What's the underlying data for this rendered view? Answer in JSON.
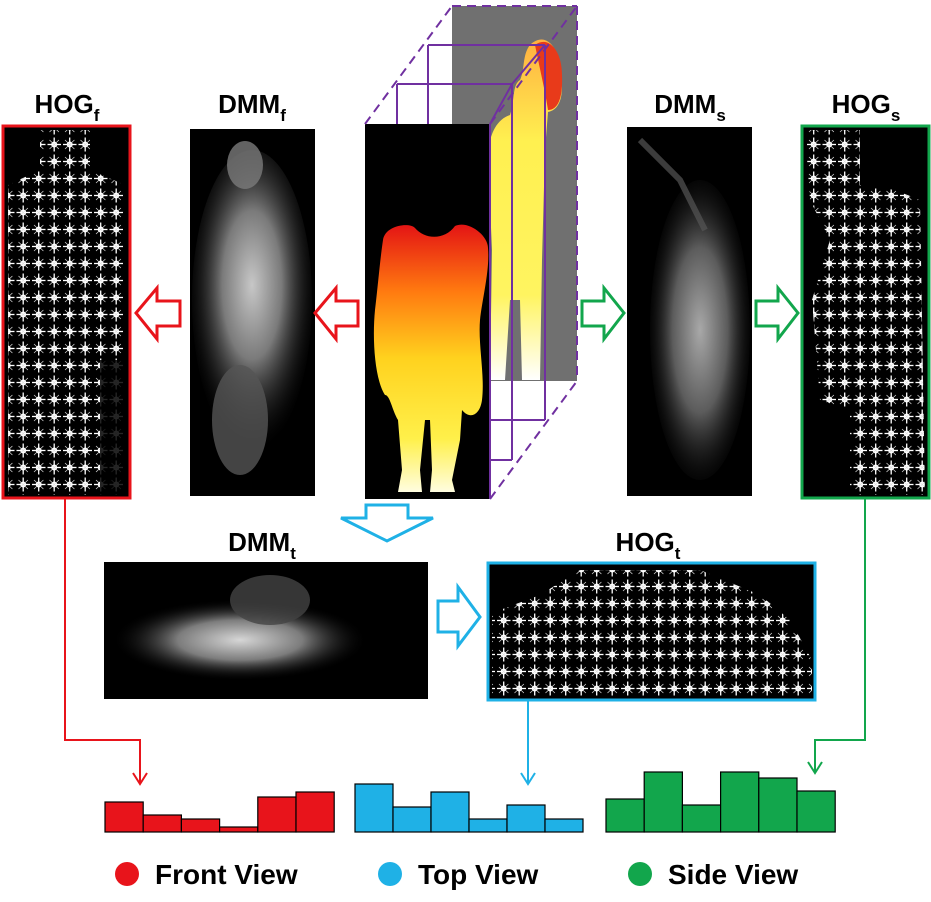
{
  "labels": {
    "hog_front": {
      "base": "HOG",
      "sub": "f"
    },
    "dmm_front": {
      "base": "DMM",
      "sub": "f"
    },
    "dmm_side": {
      "base": "DMM",
      "sub": "s"
    },
    "hog_side": {
      "base": "HOG",
      "sub": "s"
    },
    "dmm_top": {
      "base": "DMM",
      "sub": "t"
    },
    "hog_top": {
      "base": "HOG",
      "sub": "t"
    }
  },
  "colors": {
    "front": "#e8141b",
    "top": "#1fb1e6",
    "side": "#12a64c",
    "projection": "#7030a0",
    "panel_bg": "#000000",
    "gray_panel": "#707070"
  },
  "histograms": {
    "front": [
      30,
      17,
      13,
      5,
      35,
      40
    ],
    "top": [
      48,
      25,
      40,
      13,
      27,
      13
    ],
    "side": [
      33,
      60,
      27,
      60,
      54,
      41
    ]
  },
  "legend": [
    {
      "label": "Front View",
      "color": "#e8141b"
    },
    {
      "label": "Top View",
      "color": "#1fb1e6"
    },
    {
      "label": "Side View",
      "color": "#12a64c"
    }
  ]
}
